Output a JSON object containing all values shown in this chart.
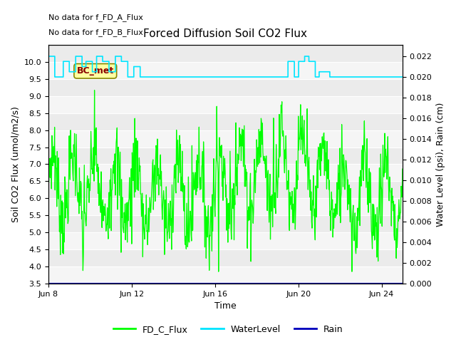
{
  "title": "Forced Diffusion Soil CO2 Flux",
  "xlabel": "Time",
  "ylabel_left": "Soil CO2 Flux (umol/m2/s)",
  "ylabel_right": "Water Level (psi), Rain (cm)",
  "text_no_data_1": "No data for f_FD_A_Flux",
  "text_no_data_2": "No data for f_FD_B_Flux",
  "bc_met_label": "BC_met",
  "ylim_left": [
    3.5,
    10.5
  ],
  "ylim_right": [
    0.0,
    0.0231
  ],
  "yticks_left": [
    3.5,
    4.0,
    4.5,
    5.0,
    5.5,
    6.0,
    6.5,
    7.0,
    7.5,
    8.0,
    8.5,
    9.0,
    9.5,
    10.0
  ],
  "yticks_right": [
    0.0,
    0.002,
    0.004,
    0.006,
    0.008,
    0.01,
    0.012,
    0.014,
    0.016,
    0.018,
    0.02,
    0.022
  ],
  "xtick_labels": [
    "Jun 8",
    "Jun 12",
    "Jun 16",
    "Jun 20",
    "Jun 24"
  ],
  "xtick_positions": [
    0,
    4,
    8,
    12,
    16
  ],
  "background_color": "#ffffff",
  "plot_bg_color": "#ebebeb",
  "grid_color": "#ffffff",
  "flux_color": "#00ff00",
  "water_color": "#00e5ff",
  "rain_color": "#0000bb",
  "legend_flux": "FD_C_Flux",
  "legend_water": "WaterLevel",
  "legend_rain": "Rain",
  "bc_met_bg": "#ffffa0",
  "bc_met_fg": "#880000",
  "bc_met_border": "#888800"
}
